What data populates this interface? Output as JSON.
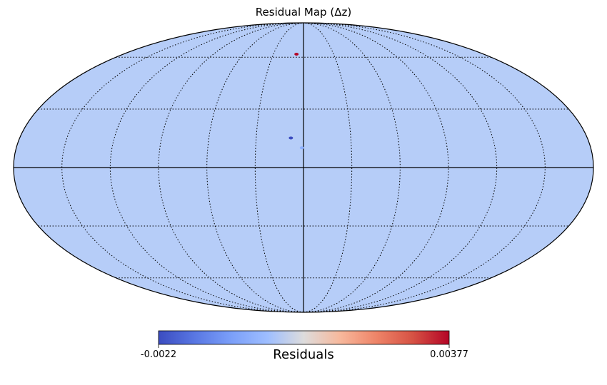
{
  "chart_data": {
    "type": "heatmap",
    "projection": "mollweide",
    "title": "Residual Map (Δz)",
    "background_value_color": "#b6cdf8",
    "graticule": {
      "meridians_deg": [
        -150,
        -120,
        -90,
        -60,
        -30,
        0,
        30,
        60,
        90,
        120,
        150
      ],
      "parallels_deg": [
        -60,
        -30,
        0,
        30,
        60
      ],
      "style": "dotted",
      "axes_lines": "solid"
    },
    "highlighted_pixels": [
      {
        "lon": -7,
        "lat": 62,
        "value": 0.00377,
        "color": "#b40426"
      },
      {
        "lon": -8,
        "lat": 15,
        "value": -0.0022,
        "color": "#3b4cc0"
      },
      {
        "lon": -1,
        "lat": 10,
        "value": -0.0005,
        "color": "#8db0fe"
      }
    ],
    "colorbar": {
      "colormap": "coolwarm",
      "min": -0.0022,
      "max": 0.00377,
      "min_label": "-0.0022",
      "max_label": "0.00377",
      "label": "Residuals"
    }
  }
}
